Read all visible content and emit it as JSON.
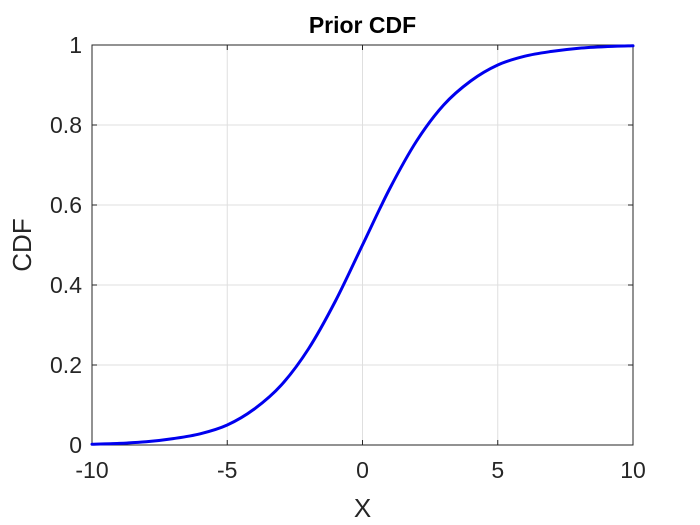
{
  "chart_data": {
    "type": "line",
    "title": "Prior CDF",
    "xlabel": "X",
    "ylabel": "CDF",
    "xlim": [
      -10,
      10
    ],
    "ylim": [
      0,
      1
    ],
    "xticks": [
      -10,
      -5,
      0,
      5,
      10
    ],
    "yticks": [
      0,
      0.2,
      0.4,
      0.6,
      0.8,
      1
    ],
    "xtick_labels": [
      "-10",
      "-5",
      "0",
      "5",
      "10"
    ],
    "ytick_labels": [
      "0",
      "0.2",
      "0.4",
      "0.6",
      "0.8",
      "1"
    ],
    "grid": true,
    "series": [
      {
        "color": "#0000ee",
        "x": [
          -10,
          -9,
          -8,
          -7,
          -6,
          -5,
          -4,
          -3,
          -2,
          -1,
          0,
          1,
          2,
          3,
          4,
          5,
          6,
          7,
          8,
          9,
          10
        ],
        "y": [
          0.002,
          0.004,
          0.008,
          0.016,
          0.028,
          0.05,
          0.09,
          0.15,
          0.24,
          0.36,
          0.5,
          0.64,
          0.76,
          0.85,
          0.91,
          0.95,
          0.972,
          0.984,
          0.992,
          0.996,
          0.998
        ]
      }
    ]
  }
}
